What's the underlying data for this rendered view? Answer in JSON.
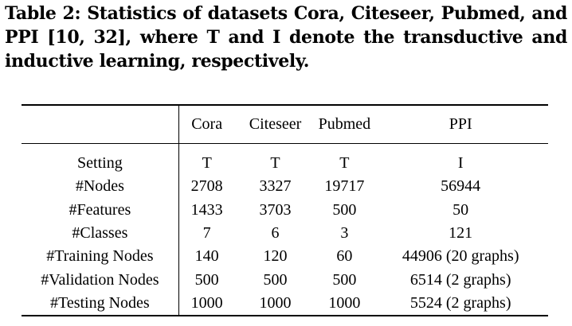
{
  "caption": "Table 2: Statistics of datasets Cora, Citeseer, Pubmed, and PPI [10, 32], where T and I denote the transductive and inductive learning, respectively.",
  "table": {
    "headers": [
      "",
      "Cora",
      "Citeseer",
      "Pubmed",
      "PPI"
    ],
    "rows": [
      [
        "Setting",
        "T",
        "T",
        "T",
        "I"
      ],
      [
        "#Nodes",
        "2708",
        "3327",
        "19717",
        "56944"
      ],
      [
        "#Features",
        "1433",
        "3703",
        "500",
        "50"
      ],
      [
        "#Classes",
        "7",
        "6",
        "3",
        "121"
      ],
      [
        "#Training Nodes",
        "140",
        "120",
        "60",
        "44906 (20 graphs)"
      ],
      [
        "#Validation Nodes",
        "500",
        "500",
        "500",
        "6514 (2 graphs)"
      ],
      [
        "#Testing Nodes",
        "1000",
        "1000",
        "1000",
        "5524 (2 graphs)"
      ]
    ]
  }
}
